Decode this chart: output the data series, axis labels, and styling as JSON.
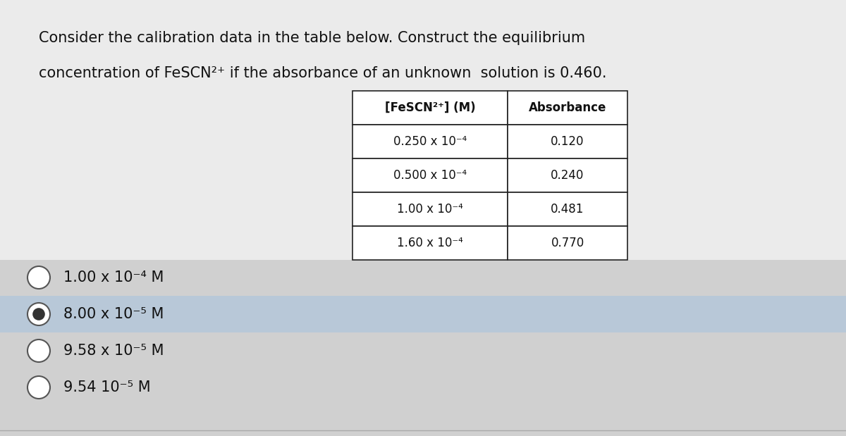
{
  "background_color": "#d8d8d8",
  "white_panel_color": "#f0f0f0",
  "question_line1": "Consider the calibration data in the table below. Construct the equilibrium",
  "question_line2": "concentration of FeSCN²⁺ if the absorbance of an unknown  solution is 0.460.",
  "table_header": [
    "[FeSCN²⁺] (M)",
    "Absorbance"
  ],
  "table_data": [
    [
      "0.250 x 10⁻⁴",
      "0.120"
    ],
    [
      "0.500 x 10⁻⁴",
      "0.240"
    ],
    [
      "1.00 x 10⁻⁴",
      "0.481"
    ],
    [
      "1.60 x 10⁻⁴",
      "0.770"
    ]
  ],
  "choices": [
    "1.00 x 10⁻⁴ M",
    "8.00 x 10⁻⁵ M",
    "9.58 x 10⁻⁵ M",
    "9.54 10⁻⁵ M"
  ],
  "selected_choice": 1,
  "selected_highlight": "#b8c8d8",
  "text_color": "#111111",
  "table_border_color": "#222222",
  "font_size_question": 15,
  "font_size_table": 13,
  "font_size_choices": 15
}
